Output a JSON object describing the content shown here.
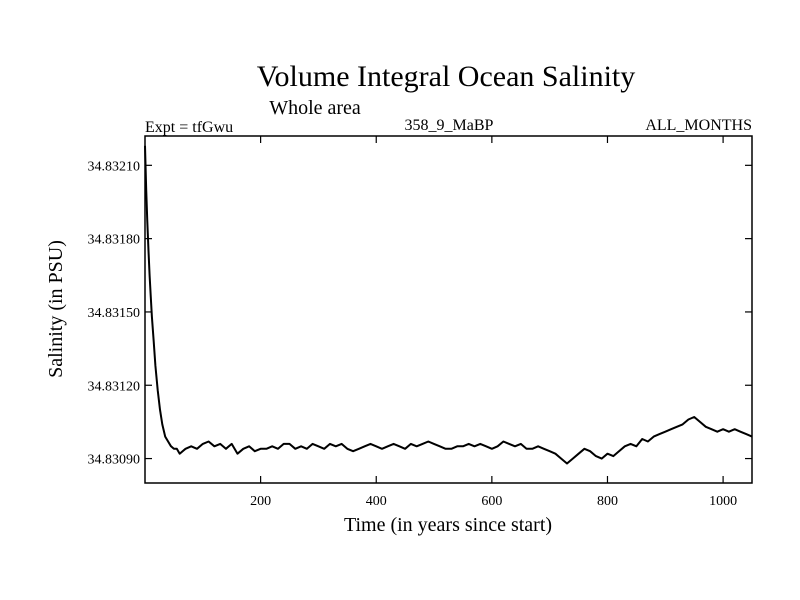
{
  "chart_data": {
    "type": "line",
    "title": "Volume Integral Ocean Salinity",
    "subtitle": "Whole area",
    "header_left": "Expt = tfGwu",
    "header_center": "358_9_MaBP",
    "header_right": "ALL_MONTHS",
    "xlabel": "Time (in years since start)",
    "ylabel": "Salinity (in PSU)",
    "xlim": [
      0,
      1050
    ],
    "ylim": [
      34.8308,
      34.83222
    ],
    "xticks": [
      200,
      400,
      600,
      800,
      1000
    ],
    "xtick_labels": [
      "200",
      "400",
      "600",
      "800",
      "1000"
    ],
    "yticks": [
      34.8309,
      34.8312,
      34.8315,
      34.8318,
      34.8321
    ],
    "ytick_labels": [
      "34.83090",
      "34.83120",
      "34.83150",
      "34.83180",
      "34.83210"
    ],
    "line_color": "#000000",
    "series": [
      {
        "name": "salinity",
        "x": [
          0,
          2,
          4,
          6,
          8,
          10,
          12,
          15,
          18,
          22,
          26,
          30,
          35,
          40,
          45,
          50,
          55,
          60,
          65,
          70,
          80,
          90,
          100,
          110,
          120,
          130,
          140,
          150,
          160,
          170,
          180,
          190,
          200,
          210,
          220,
          230,
          240,
          250,
          260,
          270,
          280,
          290,
          300,
          310,
          320,
          330,
          340,
          350,
          360,
          370,
          380,
          390,
          400,
          410,
          420,
          430,
          440,
          450,
          460,
          470,
          480,
          490,
          500,
          510,
          520,
          530,
          540,
          550,
          560,
          570,
          580,
          590,
          600,
          610,
          620,
          630,
          640,
          650,
          660,
          670,
          680,
          690,
          700,
          710,
          720,
          730,
          740,
          750,
          760,
          770,
          780,
          790,
          800,
          810,
          820,
          830,
          840,
          850,
          860,
          870,
          880,
          890,
          900,
          910,
          920,
          930,
          940,
          950,
          960,
          970,
          980,
          990,
          1000,
          1010,
          1020,
          1030,
          1040,
          1050
        ],
        "values": [
          34.83218,
          34.832,
          34.83187,
          34.83175,
          34.83165,
          34.83156,
          34.83148,
          34.83138,
          34.83128,
          34.83118,
          34.8311,
          34.83104,
          34.83099,
          34.83097,
          34.83095,
          34.83094,
          34.83094,
          34.83092,
          34.83093,
          34.83094,
          34.83095,
          34.83094,
          34.83096,
          34.83097,
          34.83095,
          34.83096,
          34.83094,
          34.83096,
          34.83092,
          34.83094,
          34.83095,
          34.83093,
          34.83094,
          34.83094,
          34.83095,
          34.83094,
          34.83096,
          34.83096,
          34.83094,
          34.83095,
          34.83094,
          34.83096,
          34.83095,
          34.83094,
          34.83096,
          34.83095,
          34.83096,
          34.83094,
          34.83093,
          34.83094,
          34.83095,
          34.83096,
          34.83095,
          34.83094,
          34.83095,
          34.83096,
          34.83095,
          34.83094,
          34.83096,
          34.83095,
          34.83096,
          34.83097,
          34.83096,
          34.83095,
          34.83094,
          34.83094,
          34.83095,
          34.83095,
          34.83096,
          34.83095,
          34.83096,
          34.83095,
          34.83094,
          34.83095,
          34.83097,
          34.83096,
          34.83095,
          34.83096,
          34.83094,
          34.83094,
          34.83095,
          34.83094,
          34.83093,
          34.83092,
          34.8309,
          34.83088,
          34.8309,
          34.83092,
          34.83094,
          34.83093,
          34.83091,
          34.8309,
          34.83092,
          34.83091,
          34.83093,
          34.83095,
          34.83096,
          34.83095,
          34.83098,
          34.83097,
          34.83099,
          34.831,
          34.83101,
          34.83102,
          34.83103,
          34.83104,
          34.83106,
          34.83107,
          34.83105,
          34.83103,
          34.83102,
          34.83101,
          34.83102,
          34.83101,
          34.83102,
          34.83101,
          34.831,
          34.83099
        ]
      }
    ]
  }
}
